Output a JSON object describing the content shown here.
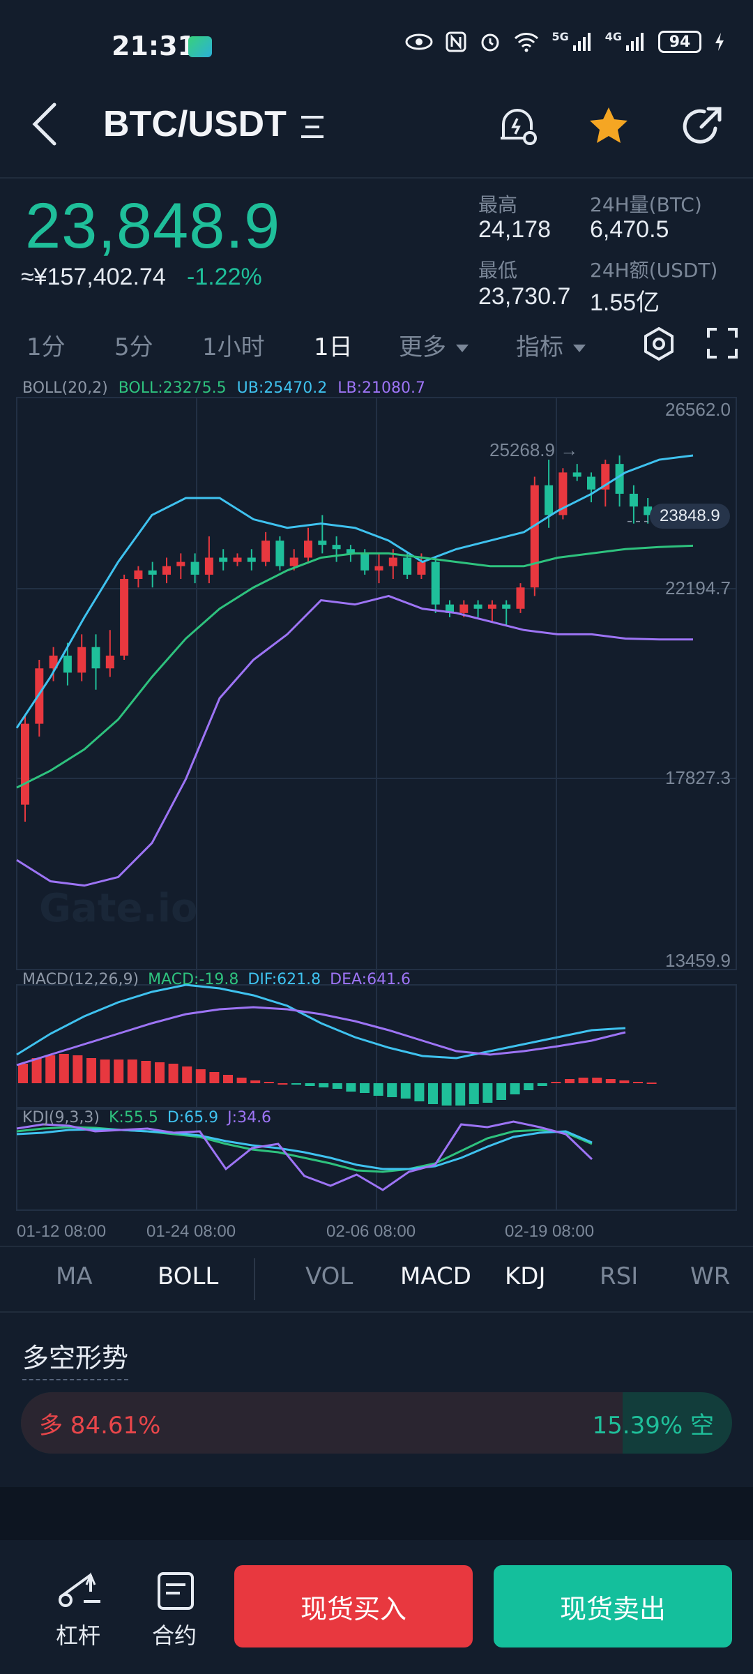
{
  "status_bar": {
    "time": "21:31",
    "app_badge": "iQIYI",
    "net1": "5G",
    "net2": "4G",
    "battery": "94"
  },
  "header": {
    "pair": "BTC/USDT"
  },
  "ticker": {
    "price": "23,848.9",
    "cny": "≈¥157,402.74",
    "change": "-1.22%",
    "high_label": "最高",
    "high_value": "24,178",
    "low_label": "最低",
    "low_value": "23,730.7",
    "vol_label": "24H量(BTC)",
    "vol_value": "6,470.5",
    "amt_label": "24H额(USDT)",
    "amt_value": "1.55亿"
  },
  "timeframes": [
    "1分",
    "5分",
    "1小时",
    "1日",
    "更多",
    "指标"
  ],
  "active_timeframe": "1日",
  "boll": {
    "name": "BOLL(20,2)",
    "boll": "BOLL:23275.5",
    "ub": "UB:25470.2",
    "lb": "LB:21080.7"
  },
  "macd": {
    "name": "MACD(12,26,9)",
    "macd": "MACD:-19.8",
    "dif": "DIF:621.8",
    "dea": "DEA:641.6"
  },
  "kdj": {
    "name": "KDJ(9,3,3)",
    "k": "K:55.5",
    "d": "D:65.9",
    "j": "J:34.6"
  },
  "axis": {
    "p1": "26562.0",
    "p2": "22194.7",
    "p3": "17827.3",
    "p4": "13459.9",
    "marker_high": "25268.9",
    "current": "23848.9"
  },
  "dates": [
    "01-12 08:00",
    "01-24 08:00",
    "02-06 08:00",
    "02-19 08:00"
  ],
  "indicator_tabs": [
    "MA",
    "BOLL",
    "VOL",
    "MACD",
    "KDJ",
    "RSI",
    "WR"
  ],
  "active_indicators": [
    "BOLL",
    "MACD",
    "KDJ"
  ],
  "sentiment": {
    "title": "多空形势",
    "long": "多 84.61%",
    "short": "15.39% 空",
    "long_ratio": 0.8461
  },
  "bottom": {
    "leverage": "杠杆",
    "contract": "合约",
    "buy": "现货买入",
    "sell": "现货卖出"
  },
  "watermark": "Gate.io",
  "colors": {
    "up": "#1fbf9a",
    "down": "#e8383f",
    "boll_mid": "#2ec27e",
    "boll_up": "#3fc2ef",
    "boll_low": "#9d74f5",
    "star": "#f5a623"
  }
}
